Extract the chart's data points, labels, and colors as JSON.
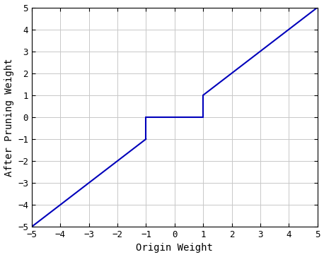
{
  "xlabel": "Origin Weight",
  "ylabel": "After Pruning Weight",
  "xlim": [
    -5,
    5
  ],
  "ylim": [
    -5,
    5
  ],
  "xticks": [
    -5,
    -4,
    -3,
    -2,
    -1,
    0,
    1,
    2,
    3,
    4,
    5
  ],
  "yticks": [
    -5,
    -4,
    -3,
    -2,
    -1,
    0,
    1,
    2,
    3,
    4,
    5
  ],
  "line_color": "#0000BB",
  "line_width": 1.5,
  "background_color": "#ffffff",
  "grid_color": "#c8c8c8",
  "grid_linewidth": 0.7,
  "xlabel_fontsize": 10,
  "ylabel_fontsize": 10,
  "tick_fontsize": 9
}
